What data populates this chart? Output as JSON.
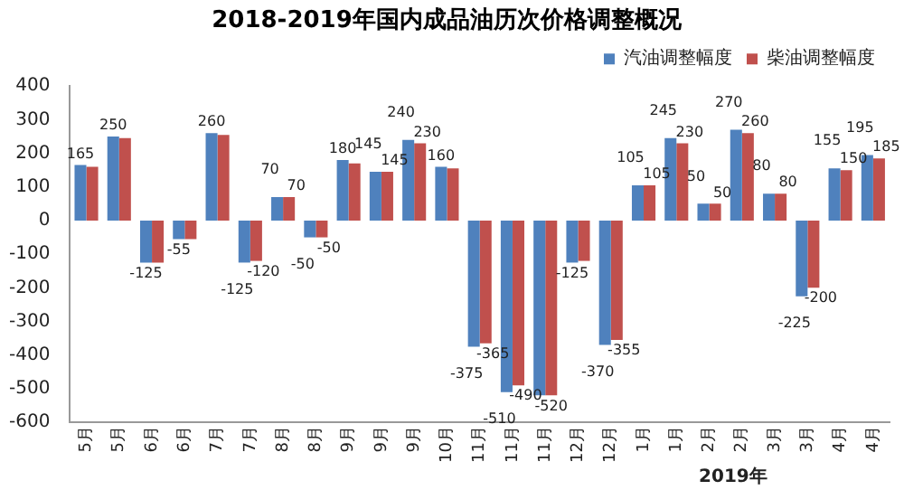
{
  "chart_data": {
    "type": "bar",
    "title": "2018-2019年国内成品油历次价格调整概况",
    "categories": [
      "5月",
      "5月",
      "6月",
      "6月",
      "7月",
      "7月",
      "8月",
      "8月",
      "9月",
      "9月",
      "9月",
      "10月",
      "11月",
      "11月",
      "11月",
      "12月",
      "12月",
      "1月",
      "1月",
      "2月",
      "2月",
      "3月",
      "3月",
      "4月",
      "4月"
    ],
    "series": [
      {
        "name": "汽油调整幅度",
        "color": "#4f81bd",
        "values": [
          165,
          250,
          -125,
          -55,
          260,
          -125,
          70,
          -50,
          180,
          145,
          240,
          160,
          -375,
          -510,
          -520,
          -125,
          -370,
          105,
          245,
          50,
          270,
          80,
          -225,
          155,
          195
        ],
        "value_labels": [
          "165",
          "250",
          "-125",
          "-55",
          "260",
          "-125",
          "70",
          "-50",
          "180",
          "145",
          "240",
          "160",
          "-375",
          "-510",
          null,
          "-125",
          "-370",
          "105",
          "245",
          "50",
          "270",
          "80",
          "-225",
          "155",
          "195"
        ]
      },
      {
        "name": "柴油调整幅度",
        "color": "#c0504d",
        "values": [
          160,
          245,
          -125,
          -55,
          255,
          -120,
          70,
          -50,
          170,
          145,
          230,
          155,
          -365,
          -490,
          -520,
          -120,
          -355,
          105,
          230,
          50,
          260,
          80,
          -200,
          150,
          185
        ],
        "value_labels": [
          null,
          null,
          null,
          null,
          null,
          "-120",
          "70",
          "-50",
          null,
          "145",
          "230",
          null,
          "-365",
          "-490",
          "-520",
          null,
          "-355",
          "105",
          "230",
          "50",
          "260",
          "80",
          "-200",
          "150",
          "185"
        ]
      }
    ],
    "ylim": [
      -600,
      400
    ],
    "yticks": [
      400,
      300,
      200,
      100,
      0,
      -100,
      -200,
      -300,
      -400,
      -500,
      -600
    ],
    "grid": false,
    "legend": "top right",
    "annotations": [
      "2019年"
    ]
  }
}
